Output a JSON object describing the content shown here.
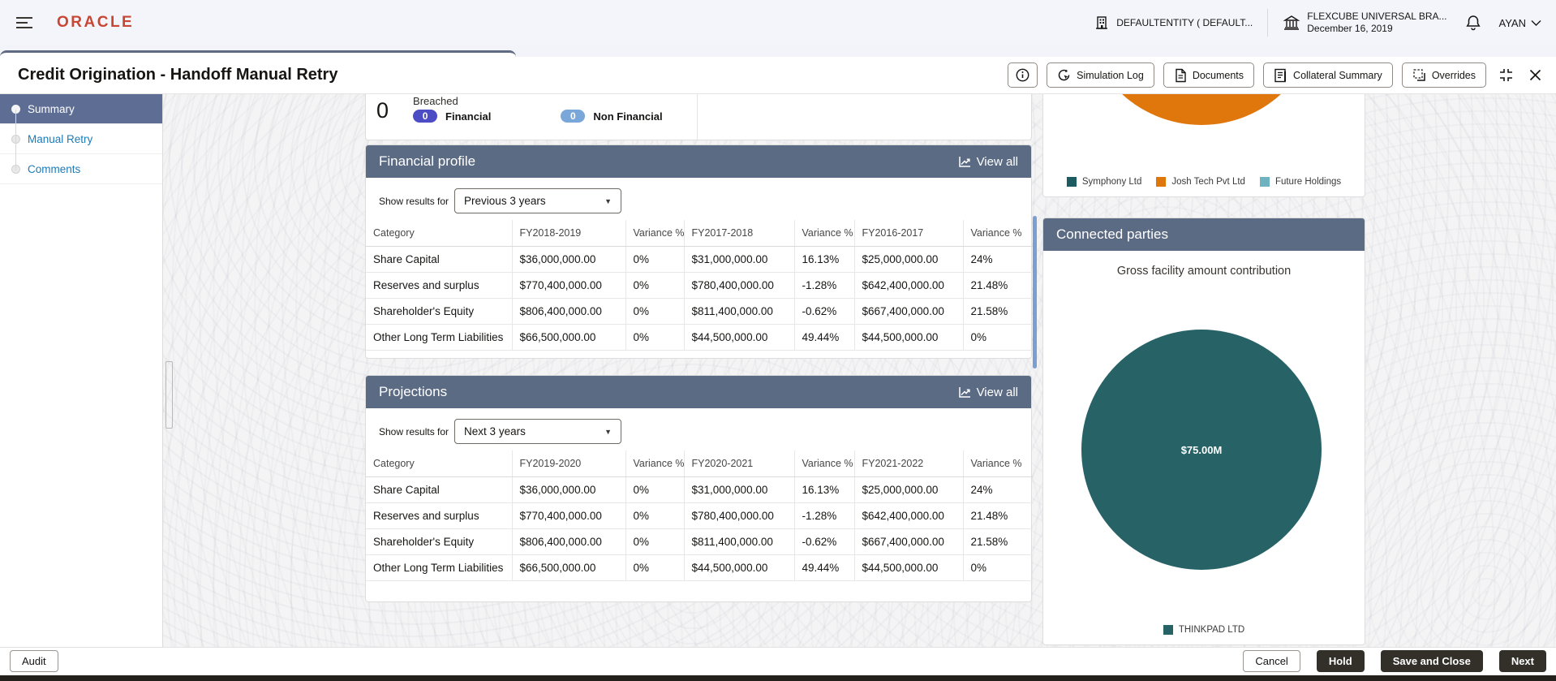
{
  "topbar": {
    "logo": "ORACLE",
    "entity_label": "DEFAULTENTITY ( DEFAULT...",
    "branch_label": "FLEXCUBE UNIVERSAL BRA...",
    "branch_date": "December 16, 2019",
    "user_name": "AYAN"
  },
  "titlebar": {
    "title": "Credit Origination - Handoff Manual Retry",
    "actions": [
      "Simulation Log",
      "Documents",
      "Collateral Summary",
      "Overrides"
    ]
  },
  "sidebar": {
    "items": [
      {
        "label": "Summary",
        "active": true
      },
      {
        "label": "Manual Retry",
        "active": false
      },
      {
        "label": "Comments",
        "active": false
      }
    ]
  },
  "covenants": {
    "count": "0",
    "label": "Breached",
    "badges": [
      {
        "count": "0",
        "label": "Financial",
        "color": "#4c4cc4"
      },
      {
        "count": "0",
        "label": "Non Financial",
        "color": "#79a7d9"
      }
    ]
  },
  "financial_profile": {
    "title": "Financial profile",
    "view_all": "View all",
    "show_results_label": "Show results for",
    "period": "Previous 3 years",
    "columns": [
      "Category",
      "FY2018-2019",
      "Variance %",
      "FY2017-2018",
      "Variance %",
      "FY2016-2017",
      "Variance %"
    ],
    "rows": [
      [
        "Share Capital",
        "$36,000,000.00",
        "0%",
        "$31,000,000.00",
        "16.13%",
        "$25,000,000.00",
        "24%"
      ],
      [
        "Reserves and surplus",
        "$770,400,000.00",
        "0%",
        "$780,400,000.00",
        "-1.28%",
        "$642,400,000.00",
        "21.48%"
      ],
      [
        "Shareholder's Equity",
        "$806,400,000.00",
        "0%",
        "$811,400,000.00",
        "-0.62%",
        "$667,400,000.00",
        "21.58%"
      ],
      [
        "Other Long Term Liabilities",
        "$66,500,000.00",
        "0%",
        "$44,500,000.00",
        "49.44%",
        "$44,500,000.00",
        "0%"
      ]
    ]
  },
  "projections": {
    "title": "Projections",
    "view_all": "View all",
    "show_results_label": "Show results for",
    "period": "Next 3 years",
    "columns": [
      "Category",
      "FY2019-2020",
      "Variance %",
      "FY2020-2021",
      "Variance %",
      "FY2021-2022",
      "Variance %"
    ],
    "rows": [
      [
        "Share Capital",
        "$36,000,000.00",
        "0%",
        "$31,000,000.00",
        "16.13%",
        "$25,000,000.00",
        "24%"
      ],
      [
        "Reserves and surplus",
        "$770,400,000.00",
        "0%",
        "$780,400,000.00",
        "-1.28%",
        "$642,400,000.00",
        "21.48%"
      ],
      [
        "Shareholder's Equity",
        "$806,400,000.00",
        "0%",
        "$811,400,000.00",
        "-0.62%",
        "$667,400,000.00",
        "21.58%"
      ],
      [
        "Other Long Term Liabilities",
        "$66,500,000.00",
        "0%",
        "$44,500,000.00",
        "49.44%",
        "$44,500,000.00",
        "0%"
      ]
    ]
  },
  "facility_chart": {
    "visible_slice_color": "#e0770d",
    "legend": [
      {
        "label": "Symphony Ltd",
        "color": "#1c5b60"
      },
      {
        "label": "Josh Tech Pvt Ltd",
        "color": "#e0770d"
      },
      {
        "label": "Future Holdings",
        "color": "#6fb3c0"
      }
    ]
  },
  "connected_parties": {
    "title": "Connected parties",
    "subtitle": "Gross facility amount contribution",
    "pie_value_label": "$75.00M",
    "pie_color": "#266266",
    "legend": [
      {
        "label": "THINKPAD LTD",
        "color": "#266266"
      }
    ]
  },
  "footer": {
    "audit": "Audit",
    "cancel": "Cancel",
    "hold": "Hold",
    "save_and_close": "Save and Close",
    "next": "Next"
  },
  "chart_data": [
    {
      "type": "pie",
      "title": "Facility amount contribution (top card, mostly scrolled out of view)",
      "labels": [
        "Symphony Ltd",
        "Josh Tech Pvt Ltd",
        "Future Holdings"
      ],
      "colors": [
        "#1c5b60",
        "#e0770d",
        "#6fb3c0"
      ],
      "legend_position": "bottom",
      "note": "Only the bottom arc of the orange slice (Josh Tech Pvt Ltd) is visible; numeric values are not shown in the screenshot"
    },
    {
      "type": "pie",
      "title": "Gross facility amount contribution",
      "labels": [
        "THINKPAD LTD"
      ],
      "value_labels": [
        "$75.00M"
      ],
      "fractions": [
        1.0
      ],
      "colors": [
        "#266266"
      ],
      "legend_position": "bottom"
    }
  ]
}
